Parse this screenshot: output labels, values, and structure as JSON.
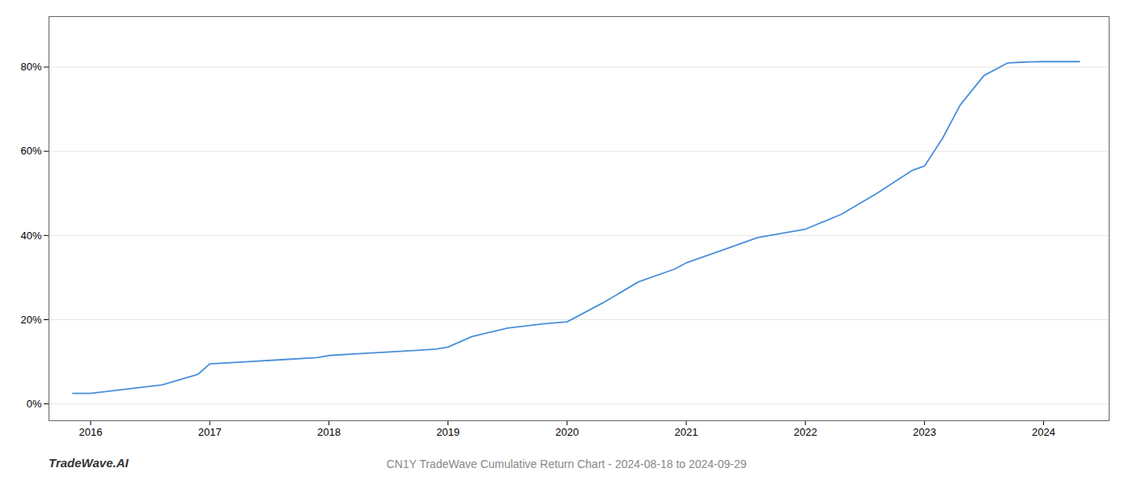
{
  "chart_data": {
    "type": "line",
    "title": "CN1Y TradeWave Cumulative Return Chart - 2024-08-18 to 2024-09-29",
    "annotations": [
      {
        "text": "TradeWave.AI"
      }
    ],
    "x": [
      2015.85,
      2016.0,
      2016.3,
      2016.6,
      2016.9,
      2017.0,
      2017.3,
      2017.6,
      2017.9,
      2018.0,
      2018.3,
      2018.6,
      2018.9,
      2019.0,
      2019.2,
      2019.5,
      2019.8,
      2020.0,
      2020.3,
      2020.6,
      2020.9,
      2021.0,
      2021.3,
      2021.6,
      2021.9,
      2022.0,
      2022.3,
      2022.6,
      2022.9,
      2023.0,
      2023.15,
      2023.3,
      2023.5,
      2023.7,
      2023.85,
      2024.0,
      2024.15,
      2024.3
    ],
    "values": [
      2.5,
      2.5,
      3.5,
      4.5,
      7.0,
      9.5,
      10.0,
      10.5,
      11.0,
      11.5,
      12.0,
      12.5,
      13.0,
      13.5,
      16.0,
      18.0,
      19.0,
      19.5,
      24.0,
      29.0,
      32.0,
      33.5,
      36.5,
      39.5,
      41.0,
      41.5,
      45.0,
      50.0,
      55.5,
      56.5,
      63.0,
      71.0,
      78.0,
      81.0,
      81.2,
      81.3,
      81.3,
      81.3
    ],
    "color": "#4a90d9",
    "xlim": [
      2015.65,
      2024.55
    ],
    "ylim": [
      -4,
      92
    ],
    "xticks": [
      2016,
      2017,
      2018,
      2019,
      2020,
      2021,
      2022,
      2023,
      2024
    ],
    "yticks": [
      {
        "value": 0,
        "label": "0%"
      },
      {
        "value": 20,
        "label": "20%"
      },
      {
        "value": 40,
        "label": "40%"
      },
      {
        "value": 60,
        "label": "60%"
      },
      {
        "value": 80,
        "label": "80%"
      }
    ],
    "grid": "y"
  }
}
